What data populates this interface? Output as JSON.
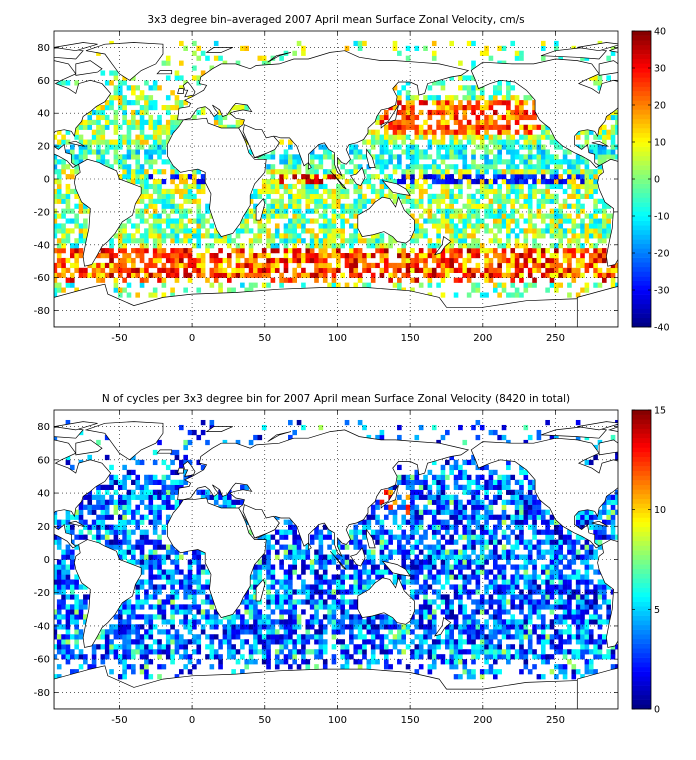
{
  "chart_data": [
    {
      "type": "heatmap",
      "title": "3x3 degree bin–averaged 2007 April mean Surface Zonal Velocity, cm/s",
      "xlim": [
        -95,
        293
      ],
      "ylim": [
        -90,
        90
      ],
      "x_ticks": [
        -50,
        0,
        50,
        100,
        150,
        200,
        250
      ],
      "y_ticks": [
        -80,
        -60,
        -40,
        -20,
        0,
        20,
        40,
        60,
        80
      ],
      "bin_size_deg": 3,
      "grid": "dotted",
      "colorbar": {
        "min": -40,
        "max": 40,
        "ticks": [
          -40,
          -30,
          -20,
          -10,
          0,
          10,
          20,
          30,
          40
        ]
      }
    },
    {
      "type": "heatmap",
      "title": "N of cycles per 3x3 degree bin for 2007 April mean Surface Zonal Velocity (8420 in total)",
      "xlim": [
        -95,
        293
      ],
      "ylim": [
        -90,
        90
      ],
      "x_ticks": [
        -50,
        0,
        50,
        100,
        150,
        200,
        250
      ],
      "y_ticks": [
        -80,
        -60,
        -40,
        -20,
        0,
        20,
        40,
        60,
        80
      ],
      "bin_size_deg": 3,
      "grid": "dotted",
      "colorbar": {
        "min": 0,
        "max": 15,
        "ticks": [
          0,
          5,
          10,
          15
        ]
      }
    }
  ]
}
